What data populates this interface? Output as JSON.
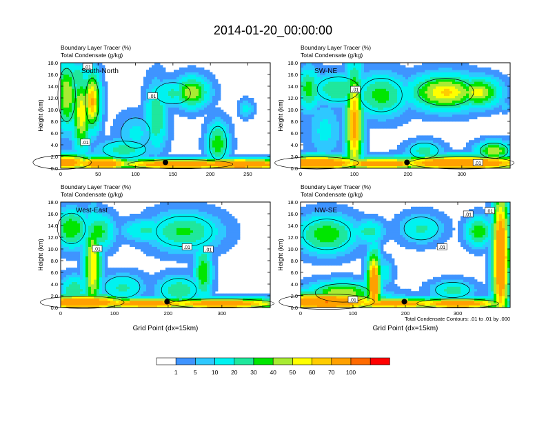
{
  "figure": {
    "title": "2014-01-20_00:00:00",
    "footnote": "Total Condensate Contours: .01 to .01 by .000"
  },
  "colorbar": {
    "labels": [
      "1",
      "5",
      "10",
      "20",
      "30",
      "40",
      "50",
      "60",
      "70",
      "100"
    ],
    "colors": [
      "#ffffff",
      "#3f94ff",
      "#2ec8ff",
      "#00f2f0",
      "#1fe79c",
      "#00e600",
      "#a8eb33",
      "#ffff00",
      "#ffcc00",
      "#ffa000",
      "#ff6a00",
      "#ff0000"
    ]
  },
  "chart_data": [
    {
      "type": "heatmap",
      "panel_label": "South-North",
      "header_line1": "Boundary Layer Tracer   (%)",
      "header_line2": "Total Condensate   (g/kg)",
      "ylabel": "Height (km)",
      "xlabel": "",
      "xlim": [
        0,
        280
      ],
      "ylim": [
        0,
        18
      ],
      "xticks": [
        "0",
        "50",
        "100",
        "150",
        "200",
        "250"
      ],
      "xtick_values": [
        0,
        50,
        100,
        150,
        200,
        250
      ],
      "yticks": [
        "0.0",
        "2.0",
        "4.0",
        "6.0",
        "8.0",
        "10.0",
        "12.0",
        "14.0",
        "16.0",
        "18.0"
      ],
      "contour_labels": [
        ".01",
        ".01",
        ".01"
      ],
      "contour_label_points": [
        [
          36,
          17.3
        ],
        [
          123,
          12.3
        ],
        [
          33,
          4.4
        ]
      ],
      "marker_point": [
        140,
        1.0
      ],
      "fields": [
        {
          "x": 2,
          "y": 1.0,
          "sx": 30,
          "sy": 0.9,
          "v": 88
        },
        {
          "x": 55,
          "y": 0.8,
          "sx": 25,
          "sy": 0.7,
          "v": 100
        },
        {
          "x": 160,
          "y": 0.7,
          "sx": 60,
          "sy": 0.6,
          "v": 95
        },
        {
          "x": 240,
          "y": 0.7,
          "sx": 50,
          "sy": 0.6,
          "v": 100
        },
        {
          "x": 8,
          "y": 12.5,
          "sx": 9,
          "sy": 3.5,
          "v": 50
        },
        {
          "x": 28,
          "y": 9.5,
          "sx": 8,
          "sy": 4.0,
          "v": 58
        },
        {
          "x": 42,
          "y": 11.5,
          "sx": 7,
          "sy": 3.0,
          "v": 72
        },
        {
          "x": 22,
          "y": 15.5,
          "sx": 10,
          "sy": 1.4,
          "v": 30
        },
        {
          "x": 85,
          "y": 3.2,
          "sx": 22,
          "sy": 1.1,
          "v": 25
        },
        {
          "x": 128,
          "y": 8.8,
          "sx": 9,
          "sy": 3.5,
          "v": 30
        },
        {
          "x": 150,
          "y": 12.8,
          "sx": 18,
          "sy": 1.4,
          "v": 22
        },
        {
          "x": 175,
          "y": 13.0,
          "sx": 14,
          "sy": 1.6,
          "v": 48
        },
        {
          "x": 210,
          "y": 4.3,
          "sx": 9,
          "sy": 2.2,
          "v": 38
        },
        {
          "x": 248,
          "y": 10.2,
          "sx": 6,
          "sy": 0.9,
          "v": 14
        },
        {
          "x": 100,
          "y": 6.0,
          "sx": 15,
          "sy": 2.0,
          "v": 12
        }
      ]
    },
    {
      "type": "heatmap",
      "panel_label": "SW-NE",
      "header_line1": "Boundary Layer Tracer   (%)",
      "header_line2": "Total Condensate   (g/kg)",
      "ylabel": "Height (km)",
      "xlabel": "",
      "xlim": [
        0,
        390
      ],
      "ylim": [
        0,
        18
      ],
      "xticks": [
        "0",
        "100",
        "200",
        "300"
      ],
      "xtick_values": [
        0,
        100,
        200,
        300
      ],
      "yticks": [
        "0.0",
        "2.0",
        "4.0",
        "6.0",
        "8.0",
        "10.0",
        "12.0",
        "14.0",
        "16.0",
        "18.0"
      ],
      "contour_labels": [
        ".01",
        ".01"
      ],
      "contour_label_points": [
        [
          102,
          13.4
        ],
        [
          330,
          0.9
        ]
      ],
      "marker_point": [
        198,
        1.0
      ],
      "fields": [
        {
          "x": 30,
          "y": 0.9,
          "sx": 60,
          "sy": 0.8,
          "v": 100
        },
        {
          "x": 150,
          "y": 0.8,
          "sx": 60,
          "sy": 0.6,
          "v": 92
        },
        {
          "x": 300,
          "y": 0.9,
          "sx": 90,
          "sy": 0.8,
          "v": 100
        },
        {
          "x": 15,
          "y": 13.5,
          "sx": 14,
          "sy": 2.2,
          "v": 35
        },
        {
          "x": 70,
          "y": 13.5,
          "sx": 30,
          "sy": 1.6,
          "v": 30
        },
        {
          "x": 100,
          "y": 7.5,
          "sx": 10,
          "sy": 6.0,
          "v": 75
        },
        {
          "x": 150,
          "y": 12.5,
          "sx": 30,
          "sy": 2.2,
          "v": 35
        },
        {
          "x": 200,
          "y": 12.8,
          "sx": 18,
          "sy": 1.0,
          "v": 20
        },
        {
          "x": 270,
          "y": 13.0,
          "sx": 40,
          "sy": 1.8,
          "v": 62
        },
        {
          "x": 330,
          "y": 13.0,
          "sx": 25,
          "sy": 1.5,
          "v": 55
        },
        {
          "x": 230,
          "y": 3.0,
          "sx": 20,
          "sy": 1.0,
          "v": 25
        },
        {
          "x": 45,
          "y": 6.5,
          "sx": 20,
          "sy": 3.0,
          "v": 12
        },
        {
          "x": 360,
          "y": 3.0,
          "sx": 20,
          "sy": 1.0,
          "v": 48
        },
        {
          "x": 380,
          "y": 10.5,
          "sx": 8,
          "sy": 0.6,
          "v": 8
        }
      ]
    },
    {
      "type": "heatmap",
      "panel_label": "West-East",
      "header_line1": "Boundary Layer Tracer   (%)",
      "header_line2": "Total Condensate   (g/kg)",
      "ylabel": "Height (km)",
      "xlabel": "Grid Point (dx=15km)",
      "xlim": [
        0,
        390
      ],
      "ylim": [
        0,
        18
      ],
      "xticks": [
        "0",
        "100",
        "200",
        "300"
      ],
      "xtick_values": [
        0,
        100,
        200,
        300
      ],
      "yticks": [
        "0.0",
        "2.0",
        "4.0",
        "6.0",
        "8.0",
        "10.0",
        "12.0",
        "14.0",
        "16.0",
        "18.0"
      ],
      "contour_labels": [
        ".01",
        ".01",
        ".01"
      ],
      "contour_label_points": [
        [
          68,
          10.0
        ],
        [
          235,
          10.3
        ],
        [
          275,
          9.9
        ]
      ],
      "marker_point": [
        198,
        1.0
      ],
      "fields": [
        {
          "x": 40,
          "y": 0.9,
          "sx": 60,
          "sy": 0.8,
          "v": 100
        },
        {
          "x": 160,
          "y": 0.7,
          "sx": 70,
          "sy": 0.6,
          "v": 88
        },
        {
          "x": 300,
          "y": 0.7,
          "sx": 80,
          "sy": 0.6,
          "v": 90
        },
        {
          "x": 60,
          "y": 7.0,
          "sx": 10,
          "sy": 5.0,
          "v": 60
        },
        {
          "x": 20,
          "y": 13.5,
          "sx": 20,
          "sy": 2.0,
          "v": 40
        },
        {
          "x": 70,
          "y": 13.0,
          "sx": 18,
          "sy": 1.8,
          "v": 35
        },
        {
          "x": 230,
          "y": 13.0,
          "sx": 40,
          "sy": 2.0,
          "v": 32
        },
        {
          "x": 160,
          "y": 13.2,
          "sx": 28,
          "sy": 1.2,
          "v": 22
        },
        {
          "x": 220,
          "y": 3.0,
          "sx": 25,
          "sy": 1.5,
          "v": 28
        },
        {
          "x": 265,
          "y": 6.0,
          "sx": 10,
          "sy": 3.0,
          "v": 38
        },
        {
          "x": 115,
          "y": 3.5,
          "sx": 25,
          "sy": 1.4,
          "v": 22
        },
        {
          "x": 25,
          "y": 3.0,
          "sx": 15,
          "sy": 1.5,
          "v": 30
        }
      ]
    },
    {
      "type": "heatmap",
      "panel_label": "NW-SE",
      "header_line1": "Boundary Layer Tracer   (%)",
      "header_line2": "Total Condensate   (g/kg)",
      "ylabel": "Height (km)",
      "xlabel": "Grid Point (dx=15km)",
      "xlim": [
        0,
        400
      ],
      "ylim": [
        0,
        18
      ],
      "xticks": [
        "0",
        "100",
        "200",
        "300"
      ],
      "xtick_values": [
        0,
        100,
        200,
        300
      ],
      "yticks": [
        "0.0",
        "2.0",
        "4.0",
        "6.0",
        "8.0",
        "10.0",
        "12.0",
        "14.0",
        "16.0",
        "18.0"
      ],
      "contour_labels": [
        ".01",
        ".01",
        ".01",
        ".01"
      ],
      "contour_label_points": [
        [
          320,
          15.9
        ],
        [
          270,
          10.3
        ],
        [
          361,
          16.5
        ],
        [
          100,
          1.3
        ]
      ],
      "marker_point": [
        198,
        1.0
      ],
      "fields": [
        {
          "x": 50,
          "y": 1.0,
          "sx": 70,
          "sy": 1.0,
          "v": 100
        },
        {
          "x": 180,
          "y": 0.7,
          "sx": 70,
          "sy": 0.6,
          "v": 85
        },
        {
          "x": 300,
          "y": 0.7,
          "sx": 60,
          "sy": 0.6,
          "v": 90
        },
        {
          "x": 140,
          "y": 4.0,
          "sx": 8,
          "sy": 3.5,
          "v": 95
        },
        {
          "x": 80,
          "y": 2.5,
          "sx": 40,
          "sy": 1.2,
          "v": 50
        },
        {
          "x": 382,
          "y": 8.5,
          "sx": 10,
          "sy": 7.5,
          "v": 100
        },
        {
          "x": 50,
          "y": 12.5,
          "sx": 35,
          "sy": 2.0,
          "v": 38
        },
        {
          "x": 130,
          "y": 13.0,
          "sx": 18,
          "sy": 1.2,
          "v": 25
        },
        {
          "x": 230,
          "y": 13.5,
          "sx": 25,
          "sy": 1.5,
          "v": 22
        },
        {
          "x": 340,
          "y": 13.0,
          "sx": 15,
          "sy": 1.5,
          "v": 40
        },
        {
          "x": 290,
          "y": 3.0,
          "sx": 25,
          "sy": 1.0,
          "v": 25
        },
        {
          "x": 160,
          "y": 6.0,
          "sx": 10,
          "sy": 1.5,
          "v": 15
        }
      ]
    }
  ]
}
